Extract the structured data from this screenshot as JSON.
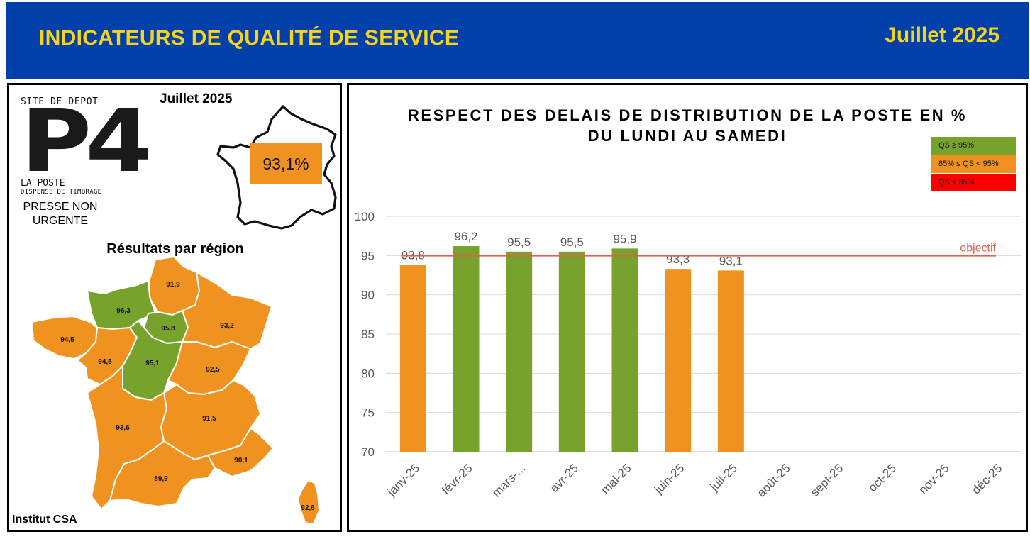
{
  "header": {
    "title": "INDICATEURS DE QUALITÉ DE SERVICE",
    "date": "Juillet 2025"
  },
  "left": {
    "logo": {
      "top": "SITE DE DEPOT",
      "big": "P4",
      "sub1": "LA POSTE",
      "sub2": "DISPENSE DE TIMBRAGE"
    },
    "category_line1": "PRESSE NON",
    "category_line2": "URGENTE",
    "date_label": "Juillet 2025",
    "overall": "93,1%",
    "region_title": "Résultats par région",
    "institut": "Institut CSA",
    "regions": [
      {
        "name": "Hauts-de-France",
        "value": "91,9",
        "status": "orange"
      },
      {
        "name": "Normandie",
        "value": "96,3",
        "status": "green"
      },
      {
        "name": "Île-de-France",
        "value": "95,8",
        "status": "green"
      },
      {
        "name": "Grand Est",
        "value": "93,2",
        "status": "orange"
      },
      {
        "name": "Bretagne",
        "value": "94,5",
        "status": "orange"
      },
      {
        "name": "Pays de la Loire",
        "value": "94,5",
        "status": "orange"
      },
      {
        "name": "Centre-Val de Loire",
        "value": "95,1",
        "status": "green"
      },
      {
        "name": "Bourgogne-Franche-Comté",
        "value": "92,5",
        "status": "orange"
      },
      {
        "name": "Nouvelle-Aquitaine",
        "value": "93,6",
        "status": "orange"
      },
      {
        "name": "Auvergne-Rhône-Alpes",
        "value": "91,5",
        "status": "orange"
      },
      {
        "name": "Occitanie",
        "value": "89,9",
        "status": "orange"
      },
      {
        "name": "Provence-Alpes-Côte d'Azur",
        "value": "90,1",
        "status": "orange"
      },
      {
        "name": "Corse",
        "value": "92,6",
        "status": "orange"
      }
    ]
  },
  "colors": {
    "header_bg": "#0040a8",
    "header_text": "#f7d31a",
    "green": "#77a22c",
    "orange": "#f0921f",
    "red": "#ff0000",
    "objective_line": "#e0604e"
  },
  "legend": [
    {
      "label": "QS ≥ 95%",
      "color": "#77a22c"
    },
    {
      "label": "85% ≤ QS < 95%",
      "color": "#f0921f"
    },
    {
      "label": "QS < 85%",
      "color": "#ff0000"
    }
  ],
  "chart_data": {
    "type": "bar",
    "title_line1": "RESPECT DES DELAIS DE DISTRIBUTION DE LA POSTE EN %",
    "title_line2": "DU LUNDI AU SAMEDI",
    "categories": [
      "janv-25",
      "févr-25",
      "mars-...",
      "avr-25",
      "mai-25",
      "juin-25",
      "juil-25",
      "août-25",
      "sept-25",
      "oct-25",
      "nov-25",
      "déc-25"
    ],
    "values": [
      93.8,
      96.2,
      95.5,
      95.5,
      95.9,
      93.3,
      93.1,
      null,
      null,
      null,
      null,
      null
    ],
    "value_labels": [
      "93,8",
      "96,2",
      "95,5",
      "95,5",
      "95,9",
      "93,3",
      "93,1",
      "",
      "",
      "",
      "",
      ""
    ],
    "bar_status": [
      "orange",
      "green",
      "green",
      "green",
      "green",
      "orange",
      "orange",
      "",
      "",
      "",
      "",
      ""
    ],
    "objective": 95,
    "objective_label": "objectif",
    "ylim": [
      70,
      100
    ],
    "yticks": [
      70,
      75,
      80,
      85,
      90,
      95,
      100
    ],
    "xlabel": "",
    "ylabel": "",
    "grid": true
  }
}
